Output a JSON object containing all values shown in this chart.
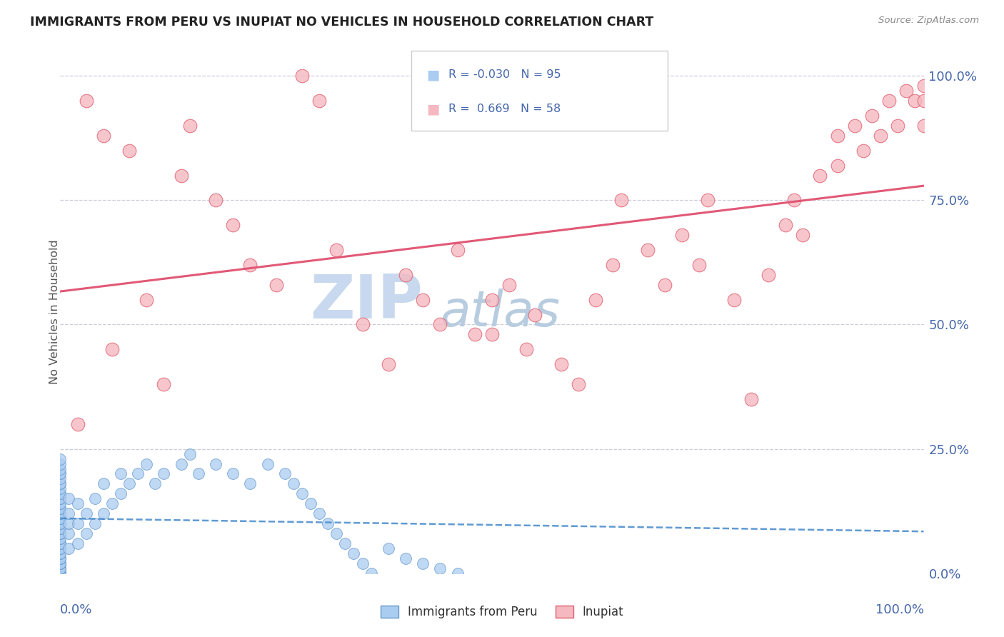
{
  "title": "IMMIGRANTS FROM PERU VS INUPIAT NO VEHICLES IN HOUSEHOLD CORRELATION CHART",
  "source": "Source: ZipAtlas.com",
  "ylabel": "No Vehicles in Household",
  "legend_peru_r": "-0.030",
  "legend_peru_n": "95",
  "legend_inupiat_r": "0.669",
  "legend_inupiat_n": "58",
  "peru_scatter_color": "#aaccf0",
  "peru_scatter_edge": "#6699cc",
  "inupiat_scatter_color": "#f5b8c0",
  "inupiat_scatter_edge": "#e06070",
  "peru_line_color": "#4488cc",
  "inupiat_line_color": "#e05070",
  "grid_color": "#ccccdd",
  "watermark_zip_color": "#c8d8ee",
  "watermark_atlas_color": "#b8cce0",
  "background_color": "#ffffff",
  "title_color": "#222222",
  "axis_label_color": "#4466aa",
  "source_color": "#888888",
  "legend_border_color": "#cccccc",
  "ytick_positions": [
    0,
    25,
    50,
    75,
    100
  ],
  "ytick_labels": [
    "0.0%",
    "25.0%",
    "50.0%",
    "75.0%",
    "100.0%"
  ],
  "xlim": [
    0,
    100
  ],
  "ylim": [
    0,
    105
  ],
  "inupiat_x": [
    2,
    3,
    5,
    6,
    8,
    10,
    12,
    14,
    15,
    18,
    20,
    22,
    25,
    28,
    30,
    32,
    35,
    38,
    40,
    42,
    44,
    46,
    48,
    50,
    50,
    52,
    54,
    55,
    58,
    60,
    62,
    64,
    65,
    68,
    70,
    72,
    74,
    75,
    78,
    80,
    82,
    84,
    85,
    86,
    88,
    90,
    90,
    92,
    93,
    94,
    95,
    96,
    97,
    98,
    99,
    100,
    100,
    100
  ],
  "inupiat_y": [
    30,
    95,
    88,
    45,
    85,
    55,
    38,
    80,
    90,
    75,
    70,
    62,
    58,
    100,
    95,
    65,
    50,
    42,
    60,
    55,
    50,
    65,
    48,
    55,
    48,
    58,
    45,
    52,
    42,
    38,
    55,
    62,
    75,
    65,
    58,
    68,
    62,
    75,
    55,
    35,
    60,
    70,
    75,
    68,
    80,
    82,
    88,
    90,
    85,
    92,
    88,
    95,
    90,
    97,
    95,
    90,
    95,
    98
  ],
  "peru_x": [
    0,
    0,
    0,
    0,
    0,
    0,
    0,
    0,
    0,
    0,
    0,
    0,
    0,
    0,
    0,
    0,
    0,
    0,
    0,
    0,
    0,
    0,
    0,
    0,
    0,
    0,
    0,
    0,
    0,
    0,
    0,
    0,
    0,
    0,
    0,
    0,
    0,
    0,
    0,
    0,
    0,
    0,
    0,
    0,
    0,
    0,
    0,
    0,
    0,
    0,
    1,
    1,
    1,
    1,
    1,
    2,
    2,
    2,
    3,
    3,
    4,
    4,
    5,
    5,
    6,
    7,
    7,
    8,
    9,
    10,
    11,
    12,
    14,
    15,
    16,
    18,
    20,
    22,
    24,
    26,
    27,
    28,
    29,
    30,
    31,
    32,
    33,
    34,
    35,
    36,
    38,
    40,
    42,
    44,
    46
  ],
  "peru_y": [
    0,
    0,
    0,
    0,
    0,
    1,
    1,
    1,
    1,
    2,
    2,
    2,
    3,
    3,
    3,
    4,
    4,
    5,
    5,
    6,
    6,
    7,
    7,
    8,
    8,
    9,
    9,
    10,
    10,
    11,
    11,
    12,
    12,
    13,
    13,
    14,
    14,
    15,
    15,
    16,
    16,
    17,
    18,
    18,
    19,
    20,
    20,
    21,
    22,
    23,
    5,
    8,
    10,
    12,
    15,
    6,
    10,
    14,
    8,
    12,
    10,
    15,
    12,
    18,
    14,
    16,
    20,
    18,
    20,
    22,
    18,
    20,
    22,
    24,
    20,
    22,
    20,
    18,
    22,
    20,
    18,
    16,
    14,
    12,
    10,
    8,
    6,
    4,
    2,
    0,
    5,
    3,
    2,
    1,
    0
  ]
}
